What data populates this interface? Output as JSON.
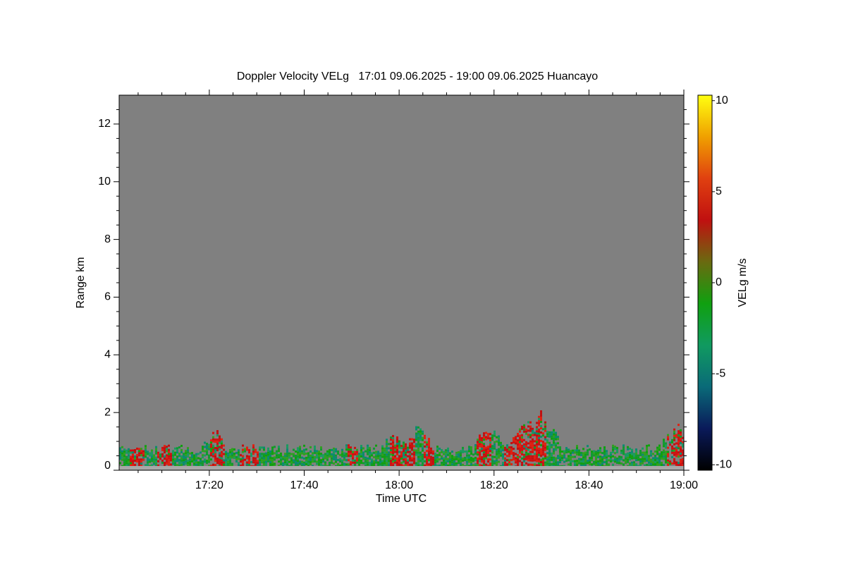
{
  "chart_data": {
    "type": "time-height",
    "title": "Doppler Velocity VELg   17:01 09.06.2025 - 19:00 09.06.2025 Huancayo",
    "xlabel": "Time UTC",
    "ylabel": "Range km",
    "xlim": [
      1021,
      1140
    ],
    "xticks": [
      {
        "value": 1040,
        "label": "17:20"
      },
      {
        "value": 1060,
        "label": "17:40"
      },
      {
        "value": 1080,
        "label": "18:00"
      },
      {
        "value": 1100,
        "label": "18:20"
      },
      {
        "value": 1120,
        "label": "18:40"
      },
      {
        "value": 1140,
        "label": "19:00"
      }
    ],
    "xticks_minor": [
      1025,
      1030,
      1035,
      1045,
      1050,
      1055,
      1065,
      1070,
      1075,
      1085,
      1090,
      1095,
      1105,
      1110,
      1115,
      1125,
      1130,
      1135
    ],
    "ylim": [
      0,
      13
    ],
    "yticks": [
      0,
      2,
      4,
      6,
      8,
      10,
      12
    ],
    "yticks_minor": [
      0.5,
      1,
      1.5,
      2.5,
      3,
      3.5,
      4.5,
      5,
      5.5,
      6.5,
      7,
      7.5,
      8.5,
      9,
      9.5,
      10.5,
      11,
      11.5,
      12.5
    ],
    "background": "#808080",
    "colorbar": {
      "label": "VELg m/s",
      "lim": [
        -10.3,
        10.3
      ],
      "ticks": [
        10,
        5,
        0,
        -5,
        -10
      ],
      "colors": [
        "#000000",
        "#0a1a5a",
        "#0a6a78",
        "#109a60",
        "#10a010",
        "#6a6a10",
        "#c01010",
        "#e04010",
        "#f0a000",
        "#ffff10"
      ]
    }
  }
}
